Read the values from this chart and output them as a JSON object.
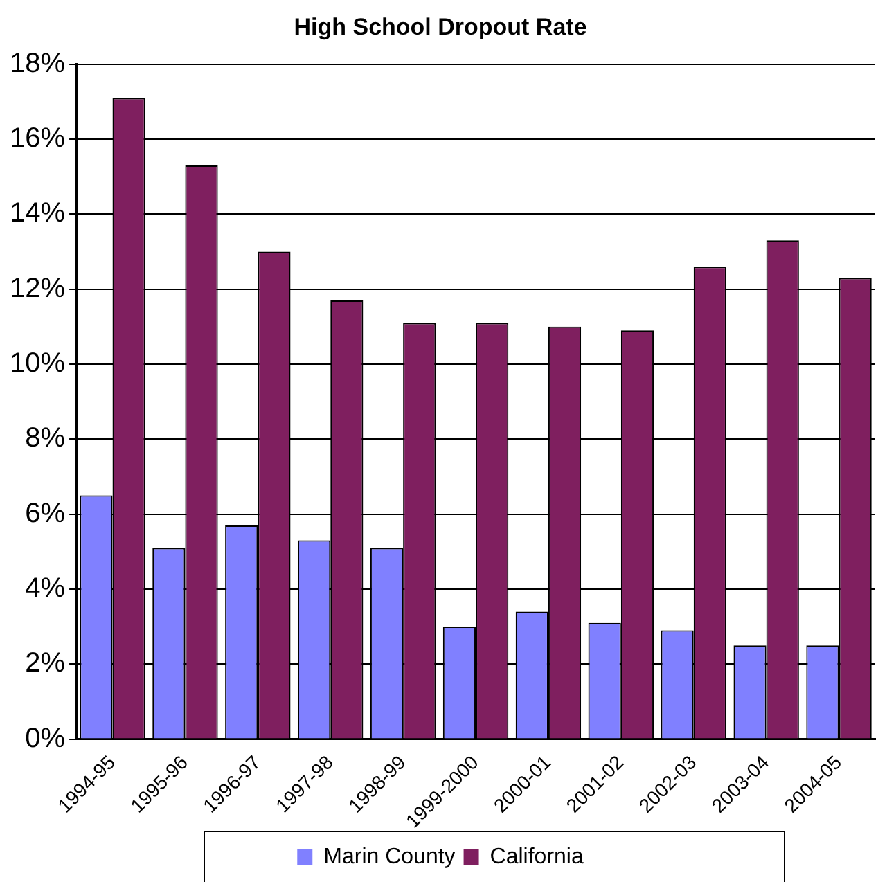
{
  "chart_data": {
    "type": "bar",
    "title": "High School Dropout Rate",
    "categories": [
      "1994-95",
      "1995-96",
      "1996-97",
      "1997-98",
      "1998-99",
      "1999-2000",
      "2000-01",
      "2001-02",
      "2002-03",
      "2003-04",
      "2004-05"
    ],
    "series": [
      {
        "name": "Marin County",
        "color": "#8080ff",
        "values": [
          6.5,
          5.1,
          5.7,
          5.3,
          5.1,
          3.0,
          3.4,
          3.1,
          2.9,
          2.5,
          2.5
        ]
      },
      {
        "name": "California",
        "color": "#7f1f5f",
        "values": [
          17.1,
          15.3,
          13.0,
          11.7,
          11.1,
          11.1,
          11.0,
          10.9,
          12.6,
          13.3,
          12.3
        ]
      }
    ],
    "ylim": [
      0,
      18
    ],
    "yticks": [
      {
        "value": 0,
        "label": "0%"
      },
      {
        "value": 2,
        "label": "2%"
      },
      {
        "value": 4,
        "label": "4%"
      },
      {
        "value": 6,
        "label": "6%"
      },
      {
        "value": 8,
        "label": "8%"
      },
      {
        "value": 10,
        "label": "10%"
      },
      {
        "value": 12,
        "label": "12%"
      },
      {
        "value": 14,
        "label": "14%"
      },
      {
        "value": 16,
        "label": "16%"
      },
      {
        "value": 18,
        "label": "18%"
      }
    ],
    "grid": "y",
    "legend": "bottom"
  }
}
